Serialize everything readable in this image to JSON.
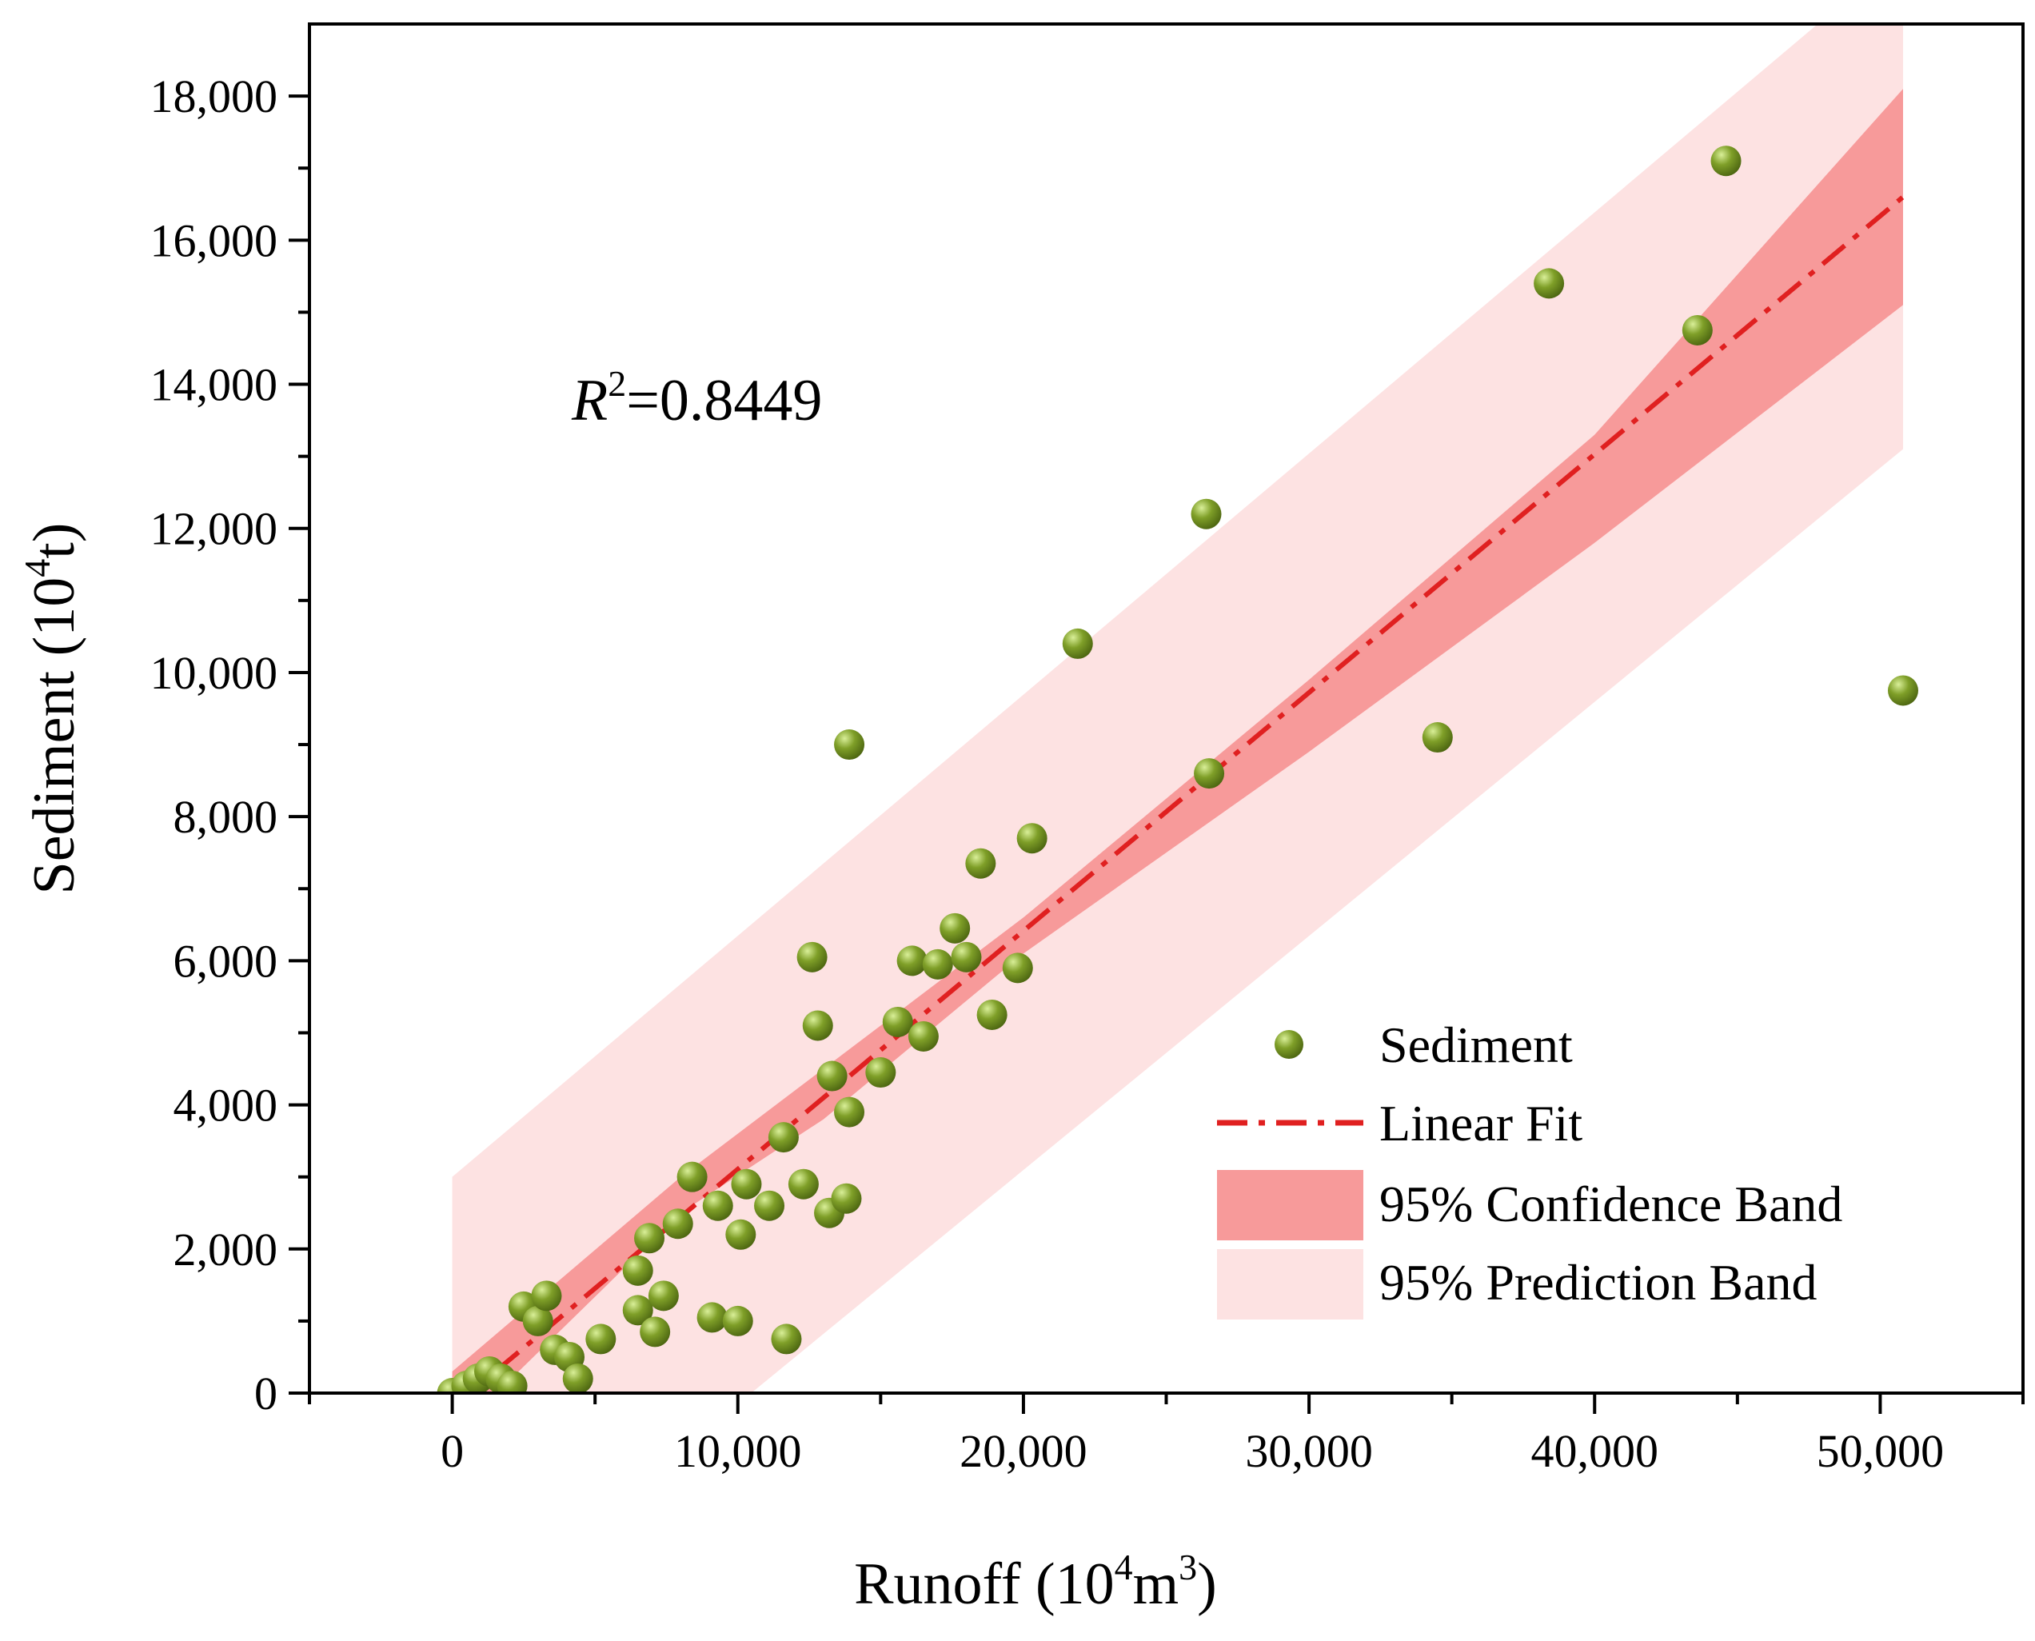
{
  "chart_data": {
    "type": "scatter",
    "xlabel": {
      "main": "Runoff (10",
      "sup1": "4",
      "mid": "m",
      "sup2": "3",
      "end": ")"
    },
    "ylabel": {
      "main": "Sediment (10",
      "sup": "4",
      "end": "t)"
    },
    "xlim": [
      -5000,
      55000
    ],
    "ylim": [
      0,
      19000
    ],
    "xticks": [
      0,
      10000,
      20000,
      30000,
      40000,
      50000
    ],
    "xtick_labels": [
      "0",
      "10,000",
      "20,000",
      "30,000",
      "40,000",
      "50,000"
    ],
    "yticks": [
      0,
      2000,
      4000,
      6000,
      8000,
      10000,
      12000,
      14000,
      16000,
      18000
    ],
    "ytick_labels": [
      "0",
      "2,000",
      "4,000",
      "6,000",
      "8,000",
      "10,000",
      "12,000",
      "14,000",
      "16,000",
      "18,000"
    ],
    "annotation": {
      "var": "R",
      "sup": "2",
      "rest": "=0.8449"
    },
    "legend": {
      "position": "bottom-right",
      "items": [
        "Sediment",
        "Linear Fit",
        "95% Confidence Band",
        "95% Prediction Band"
      ]
    },
    "colors": {
      "point_fill": "#7a9a26",
      "point_highlight": "#c7e07a",
      "fit_line": "#e02020",
      "confidence_band": "#f79a9a",
      "prediction_band": "#fde2e2"
    },
    "fit": {
      "x_range": [
        0,
        50800
      ],
      "y_at_start": -200,
      "y_at_end": 16600
    },
    "confidence_band": {
      "x": [
        0,
        8000,
        13000,
        20000,
        30000,
        40000,
        50800
      ],
      "lower": [
        -600,
        2500,
        3800,
        6100,
        8900,
        11800,
        15100
      ],
      "upper": [
        300,
        3000,
        4500,
        6600,
        9900,
        13300,
        18100
      ]
    },
    "prediction_band": {
      "x": [
        0,
        50800
      ],
      "lower": [
        -3400,
        13100
      ],
      "upper": [
        3000,
        20000
      ]
    },
    "series": [
      {
        "name": "Sediment",
        "points": [
          [
            0,
            0
          ],
          [
            500,
            100
          ],
          [
            900,
            200
          ],
          [
            1300,
            300
          ],
          [
            1700,
            200
          ],
          [
            2100,
            100
          ],
          [
            2500,
            1200
          ],
          [
            3000,
            1000
          ],
          [
            3300,
            1350
          ],
          [
            3600,
            600
          ],
          [
            4100,
            500
          ],
          [
            4400,
            200
          ],
          [
            5200,
            750
          ],
          [
            6500,
            1150
          ],
          [
            6500,
            1700
          ],
          [
            6900,
            2150
          ],
          [
            7100,
            850
          ],
          [
            7400,
            1350
          ],
          [
            7900,
            2350
          ],
          [
            8400,
            3000
          ],
          [
            9100,
            1050
          ],
          [
            9300,
            2600
          ],
          [
            10000,
            1000
          ],
          [
            10100,
            2200
          ],
          [
            10300,
            2900
          ],
          [
            11100,
            2600
          ],
          [
            11600,
            3550
          ],
          [
            11700,
            750
          ],
          [
            12300,
            2900
          ],
          [
            12600,
            6050
          ],
          [
            12800,
            5100
          ],
          [
            13200,
            2500
          ],
          [
            13300,
            4400
          ],
          [
            13800,
            2700
          ],
          [
            13900,
            3900
          ],
          [
            13900,
            9000
          ],
          [
            15000,
            4450
          ],
          [
            15600,
            5150
          ],
          [
            16100,
            6000
          ],
          [
            16500,
            4950
          ],
          [
            17000,
            5950
          ],
          [
            17600,
            6450
          ],
          [
            18000,
            6050
          ],
          [
            18500,
            7350
          ],
          [
            18900,
            5250
          ],
          [
            19800,
            5900
          ],
          [
            20300,
            7700
          ],
          [
            21900,
            10400
          ],
          [
            26400,
            12200
          ],
          [
            26500,
            8600
          ],
          [
            34500,
            9100
          ],
          [
            38400,
            15400
          ],
          [
            43600,
            14750
          ],
          [
            44600,
            17100
          ],
          [
            50800,
            9750
          ]
        ]
      }
    ]
  }
}
